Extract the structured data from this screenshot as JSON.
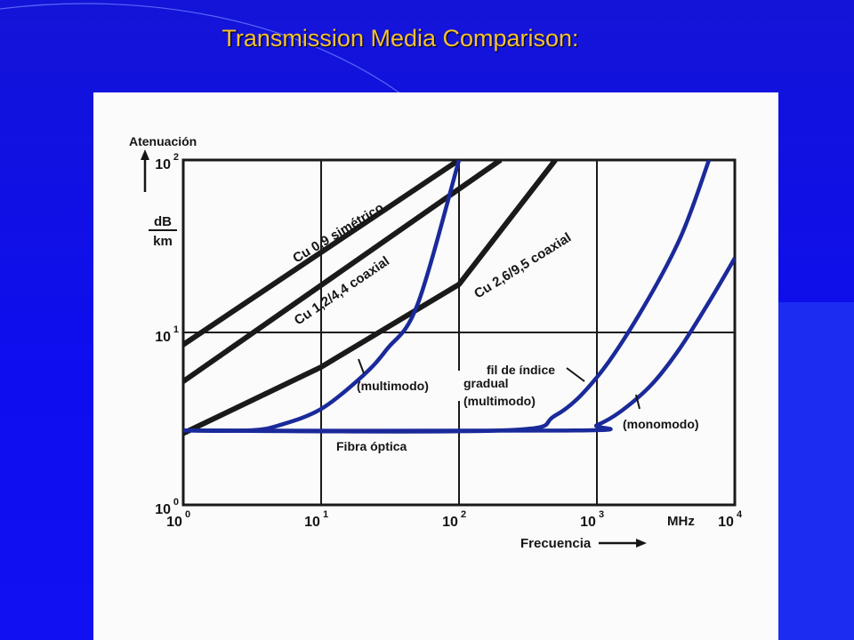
{
  "slide": {
    "title": "Transmission Media Comparison:"
  },
  "chart_data": {
    "type": "line",
    "scale": "log-log",
    "xlim": [
      1,
      10000
    ],
    "ylim": [
      1,
      100
    ],
    "x_ticks": [
      {
        "base": "10",
        "exp": "0"
      },
      {
        "base": "10",
        "exp": "1"
      },
      {
        "base": "10",
        "exp": "2"
      },
      {
        "base": "10",
        "exp": "3"
      },
      {
        "base": "10",
        "exp": "4"
      }
    ],
    "y_ticks": [
      {
        "base": "10",
        "exp": "0"
      },
      {
        "base": "10",
        "exp": "1"
      },
      {
        "base": "10",
        "exp": "2"
      }
    ],
    "x_unit": "MHz",
    "xlabel": "Frecuencia",
    "ylabel": "Atenuación",
    "yunit_top": "dB",
    "yunit_bottom": "km",
    "grid": true,
    "series": [
      {
        "name": "Cu 0,9 simétrico",
        "color": "#1a1a1a",
        "x": [
          1,
          100
        ],
        "y": [
          8.5,
          100
        ]
      },
      {
        "name": "Cu 1,2/4,4 coaxial",
        "color": "#1a1a1a",
        "x": [
          1,
          200
        ],
        "y": [
          5.2,
          100
        ]
      },
      {
        "name": "Cu 2,6/9,5 coaxial",
        "color": "#1a1a1a",
        "x": [
          1,
          10,
          100,
          500
        ],
        "y": [
          2.6,
          6.3,
          19,
          100
        ]
      },
      {
        "name": "(multimodo)",
        "color": "#1a2a9a",
        "x": [
          1,
          3,
          5,
          10,
          20,
          30,
          50,
          100
        ],
        "y": [
          2.7,
          2.7,
          2.9,
          3.6,
          5.6,
          8,
          14.5,
          100
        ]
      },
      {
        "name": "fil de índice gradual (multimodo)",
        "color": "#1a2a9a",
        "x": [
          1,
          200,
          500,
          1000,
          2000,
          4000,
          6500
        ],
        "y": [
          2.7,
          2.7,
          3.3,
          5.5,
          12.5,
          35,
          100
        ]
      },
      {
        "name": "(monomodo)",
        "color": "#1a2a9a",
        "x": [
          1,
          700,
          1000,
          1500,
          2500,
          4000,
          6500,
          10000
        ],
        "y": [
          2.7,
          2.7,
          2.9,
          3.5,
          5,
          8.1,
          15,
          27
        ]
      }
    ],
    "annotations": [
      "Fibra óptica",
      "(multimodo)",
      "fil de índice",
      "gradual",
      "(multimodo)",
      "(monomodo)"
    ]
  }
}
